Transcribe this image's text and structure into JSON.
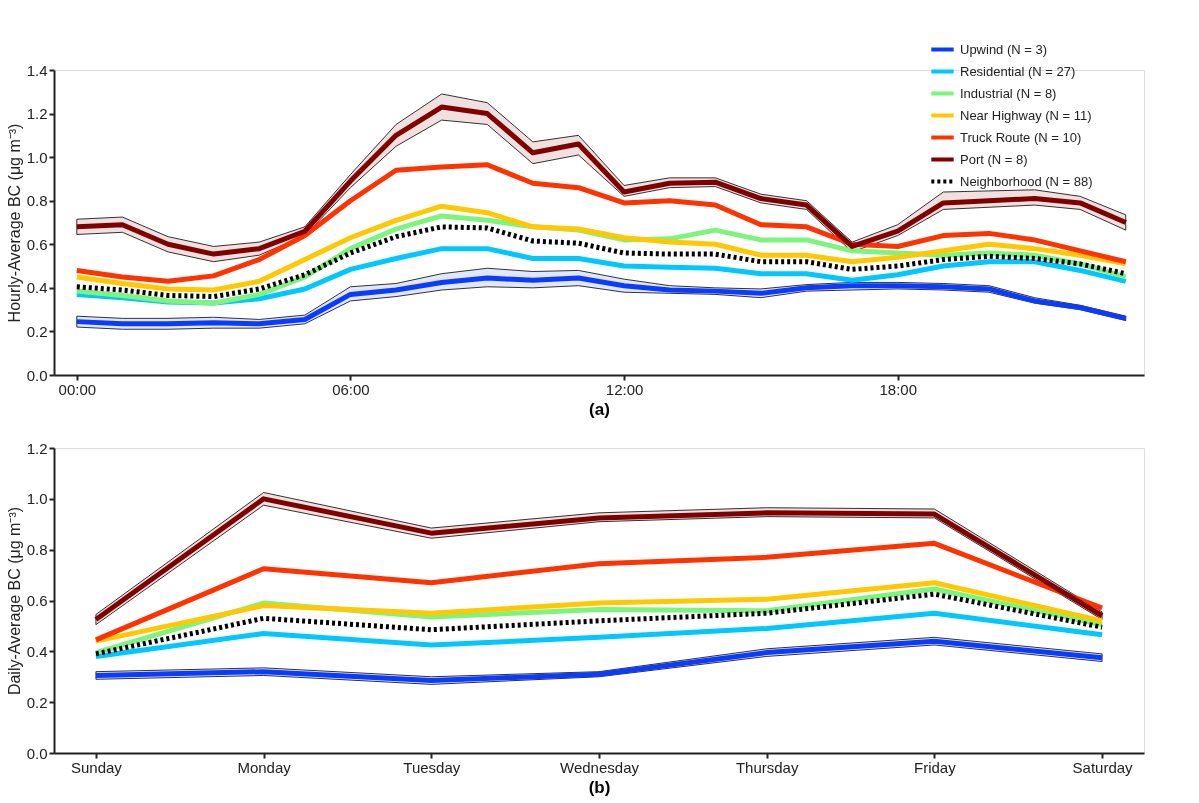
{
  "chart_data": [
    {
      "type": "line",
      "xlabel": "(a)",
      "ylabel": "Hourly-Average BC (μg m⁻³)",
      "legend": "top right",
      "x": [
        0,
        1,
        2,
        3,
        4,
        5,
        6,
        7,
        8,
        9,
        10,
        11,
        12,
        13,
        14,
        15,
        16,
        17,
        18,
        19,
        20,
        21,
        22,
        23
      ],
      "xlim": [
        -0.5,
        23.4
      ],
      "xticks": [
        {
          "value": 0,
          "label": "00:00"
        },
        {
          "value": 6,
          "label": "06:00"
        },
        {
          "value": 12,
          "label": "12:00"
        },
        {
          "value": 18,
          "label": "18:00"
        }
      ],
      "ylim": [
        0,
        1.4
      ],
      "yticks": [
        {
          "value": 0,
          "label": "0.0"
        },
        {
          "value": 0.2,
          "label": "0.2"
        },
        {
          "value": 0.4,
          "label": "0.4"
        },
        {
          "value": 0.6,
          "label": "0.6"
        },
        {
          "value": 0.8,
          "label": "0.8"
        },
        {
          "value": 1.0,
          "label": "1.0"
        },
        {
          "value": 1.2,
          "label": "1.2"
        },
        {
          "value": 1.4,
          "label": "1.4"
        }
      ],
      "series": [
        {
          "name": "Upwind (N = 3)",
          "color": "#0a3cff",
          "values": [
            0.245,
            0.235,
            0.235,
            0.24,
            0.235,
            0.255,
            0.37,
            0.39,
            0.425,
            0.445,
            0.435,
            0.445,
            0.41,
            0.39,
            0.385,
            0.375,
            0.4,
            0.41,
            0.41,
            0.405,
            0.395,
            0.34,
            0.31,
            0.26
          ],
          "lower": [
            0.22,
            0.21,
            0.21,
            0.215,
            0.215,
            0.235,
            0.34,
            0.36,
            0.39,
            0.405,
            0.4,
            0.41,
            0.38,
            0.375,
            0.37,
            0.355,
            0.385,
            0.39,
            0.395,
            0.39,
            0.38,
            0.33,
            0.3,
            0.25
          ],
          "upper": [
            0.27,
            0.26,
            0.26,
            0.265,
            0.255,
            0.275,
            0.405,
            0.42,
            0.465,
            0.49,
            0.475,
            0.48,
            0.44,
            0.41,
            0.4,
            0.395,
            0.415,
            0.425,
            0.425,
            0.42,
            0.41,
            0.355,
            0.32,
            0.27
          ]
        },
        {
          "name": "Residential (N = 27)",
          "color": "#00c8ff",
          "values": [
            0.37,
            0.355,
            0.335,
            0.33,
            0.35,
            0.395,
            0.485,
            0.535,
            0.58,
            0.58,
            0.535,
            0.535,
            0.5,
            0.495,
            0.49,
            0.465,
            0.465,
            0.435,
            0.46,
            0.5,
            0.52,
            0.52,
            0.48,
            0.43
          ]
        },
        {
          "name": "Industrial (N = 8)",
          "color": "#7df57d",
          "values": [
            0.385,
            0.365,
            0.34,
            0.33,
            0.37,
            0.45,
            0.58,
            0.67,
            0.73,
            0.71,
            0.68,
            0.665,
            0.62,
            0.625,
            0.665,
            0.62,
            0.62,
            0.57,
            0.56,
            0.55,
            0.56,
            0.55,
            0.51,
            0.45
          ]
        },
        {
          "name": "Near Highway (N = 11)",
          "color": "#ffc800",
          "values": [
            0.45,
            0.42,
            0.395,
            0.39,
            0.43,
            0.53,
            0.63,
            0.71,
            0.775,
            0.745,
            0.68,
            0.67,
            0.63,
            0.61,
            0.6,
            0.55,
            0.55,
            0.52,
            0.54,
            0.57,
            0.6,
            0.58,
            0.55,
            0.51
          ]
        },
        {
          "name": "Truck Route (N = 10)",
          "color": "#ff3300",
          "values": [
            0.48,
            0.45,
            0.43,
            0.455,
            0.53,
            0.64,
            0.8,
            0.94,
            0.955,
            0.965,
            0.88,
            0.86,
            0.79,
            0.8,
            0.78,
            0.69,
            0.68,
            0.6,
            0.59,
            0.64,
            0.65,
            0.62,
            0.57,
            0.52
          ]
        },
        {
          "name": "Port (N = 8)",
          "color": "#800000",
          "values": [
            0.68,
            0.69,
            0.6,
            0.555,
            0.58,
            0.66,
            0.89,
            1.1,
            1.23,
            1.2,
            1.02,
            1.06,
            0.84,
            0.88,
            0.885,
            0.81,
            0.78,
            0.59,
            0.66,
            0.79,
            0.8,
            0.81,
            0.79,
            0.7
          ],
          "lower": [
            0.645,
            0.655,
            0.565,
            0.52,
            0.55,
            0.64,
            0.86,
            1.05,
            1.17,
            1.15,
            0.97,
            1.01,
            0.82,
            0.86,
            0.865,
            0.79,
            0.76,
            0.565,
            0.64,
            0.76,
            0.77,
            0.78,
            0.76,
            0.665
          ],
          "upper": [
            0.715,
            0.725,
            0.635,
            0.59,
            0.61,
            0.68,
            0.92,
            1.15,
            1.29,
            1.25,
            1.07,
            1.1,
            0.87,
            0.905,
            0.905,
            0.83,
            0.8,
            0.61,
            0.69,
            0.84,
            0.845,
            0.85,
            0.82,
            0.735
          ]
        },
        {
          "name": "Neighborhood (N = 88)",
          "color": "#000000",
          "line_style": "dotted",
          "values": [
            0.405,
            0.39,
            0.365,
            0.36,
            0.395,
            0.46,
            0.56,
            0.635,
            0.68,
            0.675,
            0.615,
            0.605,
            0.56,
            0.555,
            0.555,
            0.52,
            0.52,
            0.485,
            0.5,
            0.53,
            0.545,
            0.535,
            0.51,
            0.465
          ]
        }
      ]
    },
    {
      "type": "line",
      "xlabel": "(b)",
      "ylabel": "Daily-Average BC (μg m⁻³)",
      "categories": [
        "Sunday",
        "Monday",
        "Tuesday",
        "Wednesday",
        "Thursday",
        "Friday",
        "Saturday"
      ],
      "ylim": [
        0,
        1.2
      ],
      "yticks": [
        {
          "value": 0,
          "label": "0.0"
        },
        {
          "value": 0.2,
          "label": "0.2"
        },
        {
          "value": 0.4,
          "label": "0.4"
        },
        {
          "value": 0.6,
          "label": "0.6"
        },
        {
          "value": 0.8,
          "label": "0.8"
        },
        {
          "value": 1.0,
          "label": "1.0"
        },
        {
          "value": 1.2,
          "label": "1.2"
        }
      ],
      "series": [
        {
          "name": "Upwind (N = 3)",
          "color": "#0a3cff",
          "values": [
            0.305,
            0.32,
            0.285,
            0.31,
            0.395,
            0.44,
            0.375
          ],
          "lower": [
            0.29,
            0.305,
            0.27,
            0.3,
            0.38,
            0.425,
            0.36
          ],
          "upper": [
            0.32,
            0.335,
            0.3,
            0.32,
            0.41,
            0.455,
            0.39
          ]
        },
        {
          "name": "Residential (N = 27)",
          "color": "#00c8ff",
          "values": [
            0.38,
            0.47,
            0.425,
            0.455,
            0.49,
            0.55,
            0.465
          ]
        },
        {
          "name": "Industrial (N = 8)",
          "color": "#7df57d",
          "values": [
            0.395,
            0.59,
            0.535,
            0.565,
            0.56,
            0.645,
            0.505
          ]
        },
        {
          "name": "Near Highway (N = 11)",
          "color": "#ffc800",
          "values": [
            0.44,
            0.58,
            0.55,
            0.59,
            0.605,
            0.67,
            0.52
          ]
        },
        {
          "name": "Truck Route (N = 10)",
          "color": "#ff3300",
          "values": [
            0.445,
            0.725,
            0.67,
            0.745,
            0.77,
            0.825,
            0.57
          ]
        },
        {
          "name": "Port (N = 8)",
          "color": "#800000",
          "values": [
            0.525,
            1.0,
            0.865,
            0.925,
            0.945,
            0.94,
            0.54
          ],
          "lower": [
            0.505,
            0.975,
            0.845,
            0.91,
            0.93,
            0.925,
            0.525
          ],
          "upper": [
            0.545,
            1.025,
            0.885,
            0.945,
            0.965,
            0.96,
            0.555
          ]
        },
        {
          "name": "Neighborhood (N = 88)",
          "color": "#000000",
          "line_style": "dotted",
          "values": [
            0.39,
            0.53,
            0.485,
            0.52,
            0.55,
            0.625,
            0.495
          ]
        }
      ]
    }
  ]
}
